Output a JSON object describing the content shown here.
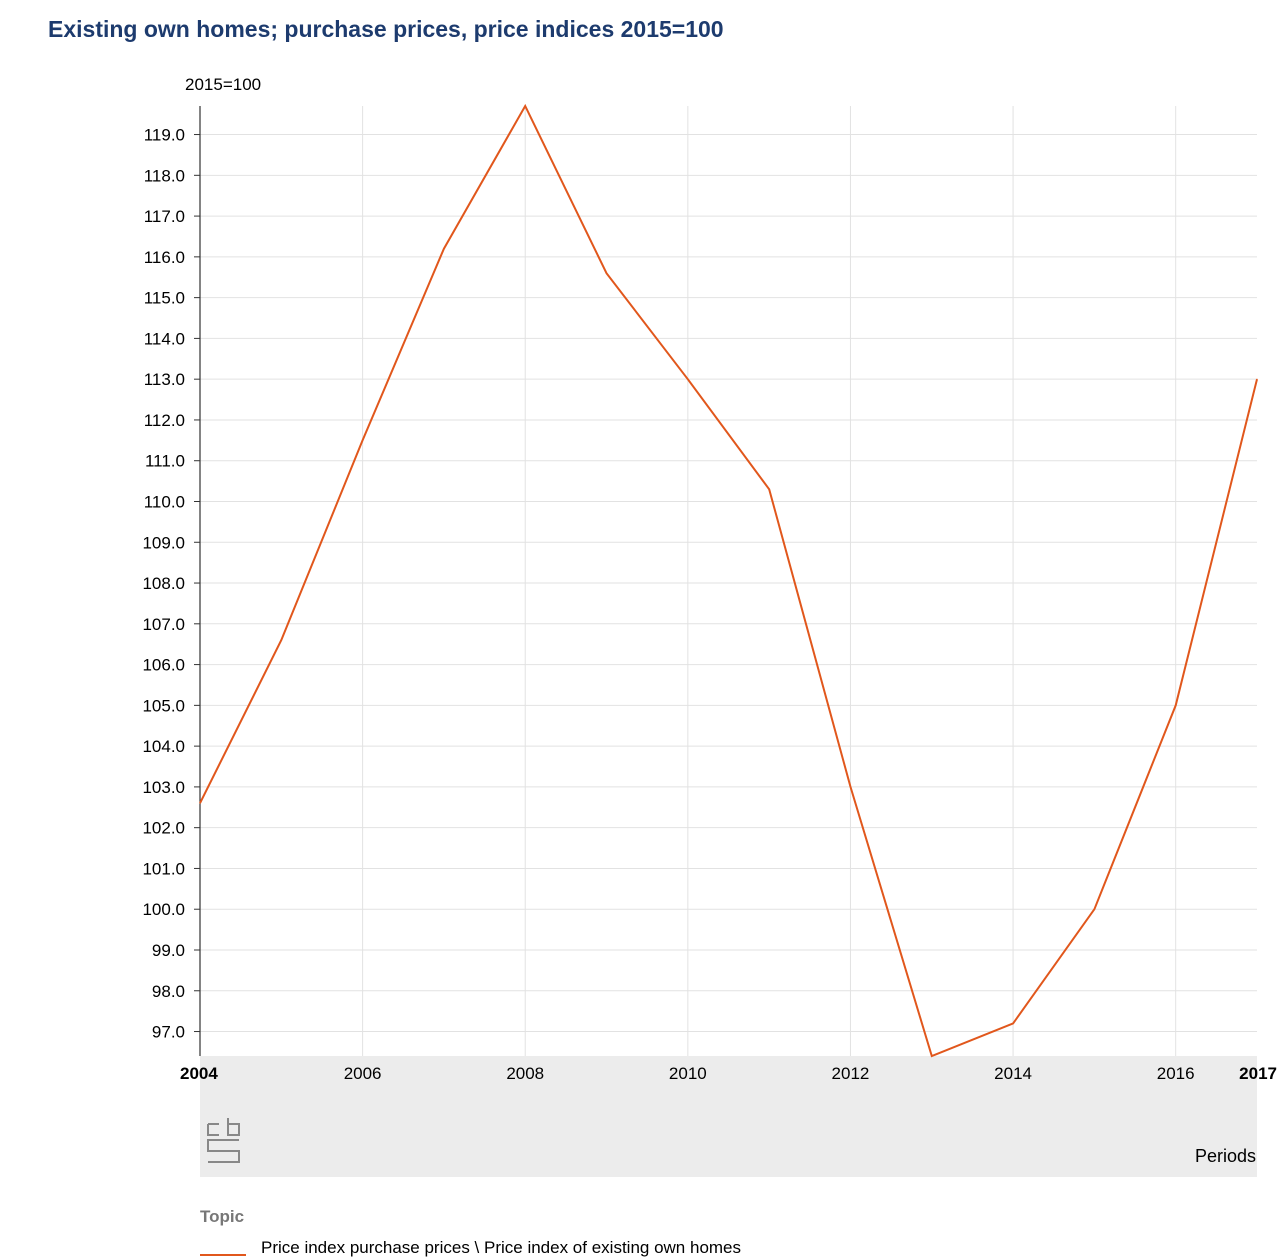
{
  "chart_data": {
    "type": "line",
    "title": "Existing own homes; purchase prices, price indices 2015=100",
    "unit_label": "2015=100",
    "xlabel": "Periods",
    "ylabel": "",
    "x": [
      2004,
      2005,
      2006,
      2007,
      2008,
      2009,
      2010,
      2011,
      2012,
      2013,
      2014,
      2015,
      2016,
      2017
    ],
    "xlim": [
      2004,
      2017
    ],
    "ylim": [
      96.4,
      119.7
    ],
    "y_ticks": [
      97.0,
      98.0,
      99.0,
      100.0,
      101.0,
      102.0,
      103.0,
      104.0,
      105.0,
      106.0,
      107.0,
      108.0,
      109.0,
      110.0,
      111.0,
      112.0,
      113.0,
      114.0,
      115.0,
      116.0,
      117.0,
      118.0,
      119.0
    ],
    "x_tick_labels": [
      "2004",
      "2006",
      "2008",
      "2010",
      "2012",
      "2014",
      "2016",
      "2017"
    ],
    "series": [
      {
        "name": "Price index purchase prices \\ Price index of existing own homes",
        "color": "#e1571c",
        "values": [
          102.6,
          106.6,
          111.5,
          116.2,
          119.7,
          115.6,
          113.0,
          110.3,
          103.0,
          96.4,
          97.2,
          100.0,
          105.0,
          113.0
        ]
      }
    ],
    "grid": true,
    "legend": {
      "title": "Topic",
      "placement": "bottom-left"
    }
  },
  "colors": {
    "title": "#1d3b6e",
    "series": "#e1571c",
    "grid": "#e2e2e2",
    "footer_band": "#ececec"
  },
  "logo_icon": "cbs-logo-icon"
}
